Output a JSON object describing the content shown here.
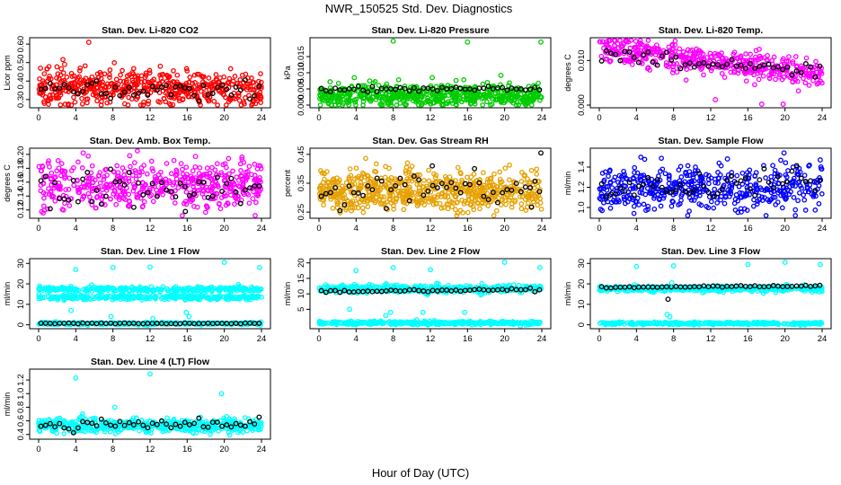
{
  "figure": {
    "title": "NWR_150525  Std. Dev. Diagnostics",
    "xlabel": "Hour of Day (UTC)"
  },
  "chart_data": [
    {
      "type": "scatter",
      "title": "Stan. Dev. Li-820 CO2",
      "ylabel": "Licor ppm",
      "color": "#ff0000",
      "xlim": [
        0,
        24
      ],
      "ylim": [
        0.27,
        0.62
      ],
      "xticks": [
        "0",
        "4",
        "8",
        "12",
        "16",
        "20",
        "24"
      ],
      "yticks": [
        "0.30",
        "0.40",
        "0.50",
        "0.60"
      ],
      "ytick_values": [
        0.3,
        0.4,
        0.5,
        0.6
      ],
      "series": [
        {
          "kind": "bulk",
          "color": "#ff0000",
          "n": 550,
          "x": [
            0,
            24
          ],
          "y_start": 0.37,
          "y_end": 0.355,
          "spread": 0.045
        },
        {
          "kind": "hourly",
          "color": "#000000",
          "n": 48,
          "x": [
            0,
            24
          ],
          "y_start": 0.36,
          "y_end": 0.345,
          "spread": 0.025
        }
      ],
      "points": [
        {
          "x": 5.4,
          "y": 0.61,
          "color": "#ff0000"
        },
        {
          "x": 0.2,
          "y": 0.47,
          "color": "#ff0000"
        },
        {
          "x": 13.1,
          "y": 0.48,
          "color": "#ff0000"
        },
        {
          "x": 2.8,
          "y": 0.49,
          "color": "#ff0000"
        }
      ]
    },
    {
      "type": "scatter",
      "title": "Stan. Dev. Li-820 Pressure",
      "ylabel": "kPa",
      "color": "#00cc00",
      "xlim": [
        0,
        24
      ],
      "ylim": [
        0,
        0.02
      ],
      "xticks": [
        "0",
        "4",
        "8",
        "12",
        "16",
        "20",
        "24"
      ],
      "yticks": [
        "0.000",
        "0.005",
        "0.010",
        "0.015"
      ],
      "ytick_values": [
        0.0,
        0.005,
        0.01,
        0.015
      ],
      "series": [
        {
          "kind": "bulk",
          "color": "#00cc00",
          "n": 600,
          "x": [
            0,
            24
          ],
          "y_start": 0.003,
          "y_end": 0.003,
          "spread": 0.0018
        },
        {
          "kind": "hourly",
          "color": "#000000",
          "n": 48,
          "x": [
            0,
            24
          ],
          "y_start": 0.0048,
          "y_end": 0.0048,
          "spread": 0.0005
        }
      ],
      "points": [
        {
          "x": 8.0,
          "y": 0.0198,
          "color": "#00cc00"
        },
        {
          "x": 16.0,
          "y": 0.0195,
          "color": "#00cc00"
        },
        {
          "x": 23.9,
          "y": 0.0195,
          "color": "#00cc00"
        },
        {
          "x": 1.2,
          "y": 0.0072,
          "color": "#00cc00"
        },
        {
          "x": 3.8,
          "y": 0.0085,
          "color": "#00cc00"
        },
        {
          "x": 12.2,
          "y": 0.0085,
          "color": "#00cc00"
        },
        {
          "x": 19.6,
          "y": 0.0092,
          "color": "#00cc00"
        }
      ]
    },
    {
      "type": "scatter",
      "title": "Stan. Dev. Li-820 Temp.",
      "ylabel": "degrees C",
      "color": "#ff00ff",
      "xlim": [
        0,
        24
      ],
      "ylim": [
        0,
        0.0145
      ],
      "xticks": [
        "0",
        "4",
        "8",
        "12",
        "16",
        "20",
        "24"
      ],
      "yticks": [
        "0.000",
        "0.010"
      ],
      "ytick_values": [
        0.0,
        0.01
      ],
      "series": [
        {
          "kind": "bulk",
          "color": "#ff00ff",
          "n": 500,
          "x": [
            0,
            24
          ],
          "y_start": 0.013,
          "y_end": 0.0068,
          "spread": 0.0015
        },
        {
          "kind": "hourly",
          "color": "#000000",
          "n": 48,
          "x": [
            0,
            24
          ],
          "y_start": 0.0115,
          "y_end": 0.0072,
          "spread": 0.0008
        }
      ],
      "points": [
        {
          "x": 0.8,
          "y": 0.0142,
          "color": "#ff00ff"
        },
        {
          "x": 12.5,
          "y": 0.0012,
          "color": "#ff00ff"
        },
        {
          "x": 17.5,
          "y": 0.0002,
          "color": "#ff00ff"
        },
        {
          "x": 19.8,
          "y": 0.0002,
          "color": "#ff00ff"
        }
      ]
    },
    {
      "type": "scatter",
      "title": "Stan. Dev. Amb. Box Temp.",
      "ylabel": "degrees C",
      "color": "#ff00ff",
      "xlim": [
        0,
        24
      ],
      "ylim": [
        0.112,
        0.205
      ],
      "xticks": [
        "0",
        "4",
        "8",
        "12",
        "16",
        "20",
        "24"
      ],
      "yticks": [
        "0.12",
        "0.14",
        "0.16",
        "0.18",
        "0.20"
      ],
      "ytick_values": [
        0.12,
        0.14,
        0.16,
        0.18,
        0.2
      ],
      "series": [
        {
          "kind": "bulk",
          "color": "#ff00ff",
          "n": 520,
          "x": [
            0,
            24
          ],
          "y_start": 0.155,
          "y_end": 0.155,
          "spread": 0.016
        },
        {
          "kind": "hourly",
          "color": "#000000",
          "n": 48,
          "x": [
            0,
            24
          ],
          "y_start": 0.15,
          "y_end": 0.15,
          "spread": 0.012
        }
      ],
      "points": [
        {
          "x": 4.8,
          "y": 0.202,
          "color": "#ff00ff"
        },
        {
          "x": 9.8,
          "y": 0.198,
          "color": "#ff00ff"
        },
        {
          "x": 16.9,
          "y": 0.197,
          "color": "#ff00ff"
        },
        {
          "x": 21.9,
          "y": 0.196,
          "color": "#ff00ff"
        },
        {
          "x": 15.8,
          "y": 0.118,
          "color": "#000000"
        }
      ]
    },
    {
      "type": "scatter",
      "title": "Stan. Dev. Gas Stream RH",
      "ylabel": "percent",
      "color": "#e6a100",
      "xlim": [
        0,
        24
      ],
      "ylim": [
        0.238,
        0.462
      ],
      "xticks": [
        "0",
        "4",
        "8",
        "12",
        "16",
        "20",
        "24"
      ],
      "yticks": [
        "0.25",
        "0.35",
        "0.45"
      ],
      "ytick_values": [
        0.25,
        0.35,
        0.45
      ],
      "series": [
        {
          "kind": "bulk",
          "color": "#e6a100",
          "n": 650,
          "x": [
            0,
            24
          ],
          "y_start": 0.325,
          "y_end": 0.32,
          "spread": 0.035
        },
        {
          "kind": "hourly",
          "color": "#000000",
          "n": 48,
          "x": [
            0,
            24
          ],
          "y_start": 0.33,
          "y_end": 0.33,
          "spread": 0.03
        }
      ],
      "points": [
        {
          "x": 23.9,
          "y": 0.455,
          "color": "#000000"
        },
        {
          "x": 12.2,
          "y": 0.41,
          "color": "#000000"
        },
        {
          "x": 3.5,
          "y": 0.255,
          "color": "#e6a100"
        },
        {
          "x": 22.9,
          "y": 0.268,
          "color": "#000000"
        }
      ]
    },
    {
      "type": "scatter",
      "title": "Stan. Dev. Sample Flow",
      "ylabel": "ml/min",
      "color": "#0000ff",
      "xlim": [
        0,
        24
      ],
      "ylim": [
        0.92,
        1.56
      ],
      "xticks": [
        "0",
        "4",
        "8",
        "12",
        "16",
        "20",
        "24"
      ],
      "yticks": [
        "1.0",
        "1.2",
        "1.4"
      ],
      "ytick_values": [
        1.0,
        1.2,
        1.4
      ],
      "series": [
        {
          "kind": "bulk",
          "color": "#0000ff",
          "n": 480,
          "x": [
            0,
            24
          ],
          "y_start": 1.18,
          "y_end": 1.22,
          "spread": 0.11
        },
        {
          "kind": "hourly",
          "color": "#000000",
          "n": 48,
          "x": [
            0,
            24
          ],
          "y_start": 1.2,
          "y_end": 1.24,
          "spread": 0.07
        }
      ],
      "points": [
        {
          "x": 19.9,
          "y": 1.54,
          "color": "#0000ff"
        },
        {
          "x": 13.8,
          "y": 1.48,
          "color": "#0000ff"
        },
        {
          "x": 23.8,
          "y": 1.47,
          "color": "#0000ff"
        },
        {
          "x": 0.3,
          "y": 0.97,
          "color": "#0000ff"
        }
      ]
    },
    {
      "type": "scatter",
      "title": "Stan. Dev. Line 1 Flow",
      "ylabel": "ml/min",
      "color": "#00ffff",
      "xlim": [
        0,
        24
      ],
      "ylim": [
        -0.6,
        31
      ],
      "xticks": [
        "0",
        "4",
        "8",
        "12",
        "16",
        "20",
        "24"
      ],
      "yticks": [
        "0",
        "10",
        "20",
        "30"
      ],
      "ytick_values": [
        0,
        10,
        20,
        30
      ],
      "series": [
        {
          "kind": "band",
          "color": "#00ffff",
          "n": 300,
          "x": [
            0,
            24
          ],
          "y": 17.3,
          "spread": 0.6
        },
        {
          "kind": "band",
          "color": "#00ffff",
          "n": 300,
          "x": [
            0,
            24
          ],
          "y": 13.4,
          "spread": 0.5
        },
        {
          "kind": "band",
          "color": "#00ffff",
          "n": 350,
          "x": [
            0,
            24
          ],
          "y": 0.6,
          "spread": 0.3
        },
        {
          "kind": "hourly",
          "color": "#000000",
          "n": 48,
          "x": [
            0,
            24
          ],
          "y_start": 0.7,
          "y_end": 0.7,
          "spread": 0.1
        }
      ],
      "points": [
        {
          "x": 4.0,
          "y": 27.0,
          "color": "#00ffff"
        },
        {
          "x": 8.0,
          "y": 28.0,
          "color": "#00ffff"
        },
        {
          "x": 12.0,
          "y": 28.2,
          "color": "#00ffff"
        },
        {
          "x": 20.0,
          "y": 30.5,
          "color": "#00ffff"
        },
        {
          "x": 23.8,
          "y": 28.0,
          "color": "#00ffff"
        },
        {
          "x": 3.5,
          "y": 7.0,
          "color": "#00ffff"
        },
        {
          "x": 7.8,
          "y": 4.0,
          "color": "#00ffff"
        },
        {
          "x": 12.3,
          "y": 3.0,
          "color": "#00ffff"
        },
        {
          "x": 15.9,
          "y": 6.0,
          "color": "#00ffff"
        },
        {
          "x": 16.2,
          "y": 4.0,
          "color": "#00ffff"
        }
      ]
    },
    {
      "type": "scatter",
      "title": "Stan. Dev. Line 2 Flow",
      "ylabel": "ml/min",
      "color": "#00ffff",
      "xlim": [
        0,
        24
      ],
      "ylim": [
        -0.4,
        20.5
      ],
      "xticks": [
        "0",
        "4",
        "8",
        "12",
        "16",
        "20",
        "24"
      ],
      "yticks": [
        "5",
        "10",
        "15",
        "20"
      ],
      "ytick_values": [
        5,
        10,
        15,
        20
      ],
      "series": [
        {
          "kind": "band",
          "color": "#00ffff",
          "n": 420,
          "x": [
            0,
            24
          ],
          "y": 11.6,
          "spread": 0.6
        },
        {
          "kind": "band",
          "color": "#00ffff",
          "n": 350,
          "x": [
            0,
            24
          ],
          "y": 0.6,
          "spread": 0.3
        },
        {
          "kind": "hourly",
          "color": "#000000",
          "n": 48,
          "x": [
            0,
            24
          ],
          "y_start": 10.7,
          "y_end": 11.4,
          "spread": 0.2
        }
      ],
      "points": [
        {
          "x": 4.0,
          "y": 17.5,
          "color": "#00ffff"
        },
        {
          "x": 8.0,
          "y": 18.5,
          "color": "#00ffff"
        },
        {
          "x": 12.0,
          "y": 17.8,
          "color": "#00ffff"
        },
        {
          "x": 20.0,
          "y": 20.2,
          "color": "#00ffff"
        },
        {
          "x": 23.8,
          "y": 18.5,
          "color": "#00ffff"
        },
        {
          "x": 3.3,
          "y": 5.0,
          "color": "#00ffff"
        },
        {
          "x": 7.2,
          "y": 3.0,
          "color": "#00ffff"
        },
        {
          "x": 7.7,
          "y": 4.0,
          "color": "#00ffff"
        },
        {
          "x": 11.2,
          "y": 4.0,
          "color": "#00ffff"
        },
        {
          "x": 15.7,
          "y": 4.0,
          "color": "#00ffff"
        }
      ]
    },
    {
      "type": "scatter",
      "title": "Stan. Dev. Line 3 Flow",
      "ylabel": "ml/min",
      "color": "#00ffff",
      "xlim": [
        0,
        24
      ],
      "ylim": [
        -0.6,
        31
      ],
      "xticks": [
        "0",
        "4",
        "8",
        "12",
        "16",
        "20",
        "24"
      ],
      "yticks": [
        "0",
        "10",
        "20",
        "30"
      ],
      "ytick_values": [
        0,
        10,
        20,
        30
      ],
      "series": [
        {
          "kind": "band",
          "color": "#00ffff",
          "n": 420,
          "x": [
            0,
            24
          ],
          "y": 17.6,
          "spread": 0.7
        },
        {
          "kind": "band",
          "color": "#00ffff",
          "n": 350,
          "x": [
            0,
            24
          ],
          "y": 0.7,
          "spread": 0.3
        },
        {
          "kind": "hourly",
          "color": "#000000",
          "n": 48,
          "x": [
            0,
            24
          ],
          "y_start": 18.3,
          "y_end": 19.0,
          "spread": 0.2
        }
      ],
      "points": [
        {
          "x": 4.0,
          "y": 28.5,
          "color": "#00ffff"
        },
        {
          "x": 8.0,
          "y": 28.8,
          "color": "#00ffff"
        },
        {
          "x": 16.0,
          "y": 29.5,
          "color": "#00ffff"
        },
        {
          "x": 20.0,
          "y": 30.5,
          "color": "#00ffff"
        },
        {
          "x": 23.8,
          "y": 29.5,
          "color": "#00ffff"
        },
        {
          "x": 7.3,
          "y": 5.0,
          "color": "#00ffff"
        },
        {
          "x": 7.6,
          "y": 4.0,
          "color": "#00ffff"
        },
        {
          "x": 7.4,
          "y": 12.5,
          "color": "#000000"
        },
        {
          "x": 7.8,
          "y": 20.5,
          "color": "#00ffff"
        }
      ]
    },
    {
      "type": "scatter",
      "title": "Stan. Dev. Line 4 (LT) Flow",
      "ylabel": "ml/min",
      "color": "#00ffff",
      "xlim": [
        0,
        24
      ],
      "ylim": [
        0.37,
        1.32
      ],
      "xticks": [
        "0",
        "4",
        "8",
        "12",
        "16",
        "20",
        "24"
      ],
      "yticks": [
        "0.4",
        "0.6",
        "0.8",
        "1.0",
        "1.2"
      ],
      "ytick_values": [
        0.4,
        0.6,
        0.8,
        1.0,
        1.2
      ],
      "series": [
        {
          "kind": "bulk",
          "color": "#00ffff",
          "n": 520,
          "x": [
            0,
            24
          ],
          "y_start": 0.53,
          "y_end": 0.53,
          "spread": 0.05
        },
        {
          "kind": "hourly",
          "color": "#000000",
          "n": 48,
          "x": [
            0,
            24
          ],
          "y_start": 0.55,
          "y_end": 0.55,
          "spread": 0.04
        }
      ],
      "points": [
        {
          "x": 12.0,
          "y": 1.29,
          "color": "#00ffff"
        },
        {
          "x": 4.0,
          "y": 1.23,
          "color": "#00ffff"
        },
        {
          "x": 19.7,
          "y": 1.0,
          "color": "#00ffff"
        },
        {
          "x": 8.2,
          "y": 0.8,
          "color": "#00ffff"
        }
      ]
    }
  ]
}
